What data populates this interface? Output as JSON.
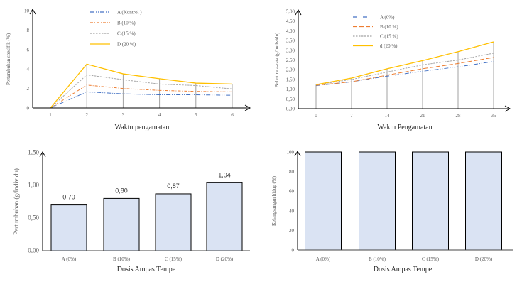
{
  "chart_data": [
    {
      "type": "line",
      "xlabel": "Waktu pengamatan",
      "ylabel": "Pertumbuhan spesifik (%)",
      "x": [
        1,
        2,
        3,
        4,
        5,
        6
      ],
      "xticks": [
        "1",
        "2",
        "3",
        "4",
        "5",
        "6"
      ],
      "yticks": [
        "0",
        "2",
        "4",
        "6",
        "8",
        "10"
      ],
      "ylim": [
        0,
        10
      ],
      "legend_placement": "top-left",
      "grid": "vertical drop lines",
      "series": [
        {
          "name": "A (Kontrol )",
          "values": [
            0,
            1.65,
            1.45,
            1.35,
            1.35,
            1.3
          ],
          "color": "#4472C4",
          "dash": "dash-dot-dot"
        },
        {
          "name": "B (10 %)",
          "values": [
            0,
            2.35,
            2.0,
            1.8,
            1.7,
            1.65
          ],
          "color": "#ED7D31",
          "dash": "dash-dot"
        },
        {
          "name": "C (15 %)",
          "values": [
            0,
            3.4,
            2.9,
            2.45,
            2.3,
            1.95
          ],
          "color": "#A5A5A5",
          "dash": "dashed"
        },
        {
          "name": "D (20 %)",
          "values": [
            0,
            4.5,
            3.5,
            3.0,
            2.55,
            2.45
          ],
          "color": "#FFC000",
          "dash": "solid"
        }
      ]
    },
    {
      "type": "line",
      "xlabel": "Waktu Pengamatan",
      "ylabel": "Bobot rata-rata (g/Individu)",
      "x": [
        0,
        7,
        14,
        21,
        28,
        35
      ],
      "xticks": [
        "0",
        "7",
        "14",
        "21",
        "28",
        "35"
      ],
      "yticks": [
        "0,00",
        "0,50",
        "1,00",
        "1,50",
        "2,00",
        "2,50",
        "3,00",
        "3,50",
        "4,00",
        "4,50",
        "5,00"
      ],
      "ylim": [
        0,
        5
      ],
      "legend_placement": "top-left",
      "grid": "vertical drop lines",
      "series": [
        {
          "name": "A (0%)",
          "values": [
            1.18,
            1.38,
            1.67,
            1.92,
            2.15,
            2.42
          ],
          "color": "#4472C4",
          "dash": "dash-dot-dot"
        },
        {
          "name": "B (10 %)",
          "values": [
            1.2,
            1.38,
            1.72,
            2.05,
            2.32,
            2.63
          ],
          "color": "#ED7D31",
          "dash": "long-dash"
        },
        {
          "name": "C (15 %)",
          "values": [
            1.22,
            1.5,
            1.88,
            2.25,
            2.5,
            2.85
          ],
          "color": "#A5A5A5",
          "dash": "dashed"
        },
        {
          "name": "d (20 %)",
          "values": [
            1.23,
            1.57,
            2.05,
            2.47,
            2.93,
            3.43
          ],
          "color": "#FFC000",
          "dash": "solid"
        }
      ]
    },
    {
      "type": "bar",
      "xlabel": "Dosis Ampas Tempe",
      "ylabel": "Pertumbuhan (g/Individu)",
      "categories": [
        "A (0%)",
        "B (10%)",
        "C (15%)",
        "D (20%)"
      ],
      "values": [
        0.7,
        0.8,
        0.87,
        1.04
      ],
      "data_labels": [
        "0,70",
        "0,80",
        "0,87",
        "1,04"
      ],
      "yticks": [
        "0,00",
        "0,50",
        "1,00",
        "1,50"
      ],
      "ylim": [
        0,
        1.5
      ],
      "bar_color": "#DAE3F3"
    },
    {
      "type": "bar",
      "xlabel": "Dosis Ampas Tempe",
      "ylabel": "Kelangsungan hidup (%)",
      "categories": [
        "A (0%)",
        "B (10%)",
        "C (15%)",
        "D (20%)"
      ],
      "values": [
        100,
        100,
        100,
        100
      ],
      "yticks": [
        "0",
        "20",
        "40",
        "60",
        "80",
        "100"
      ],
      "ylim": [
        0,
        100
      ],
      "bar_color": "#DAE3F3"
    }
  ]
}
